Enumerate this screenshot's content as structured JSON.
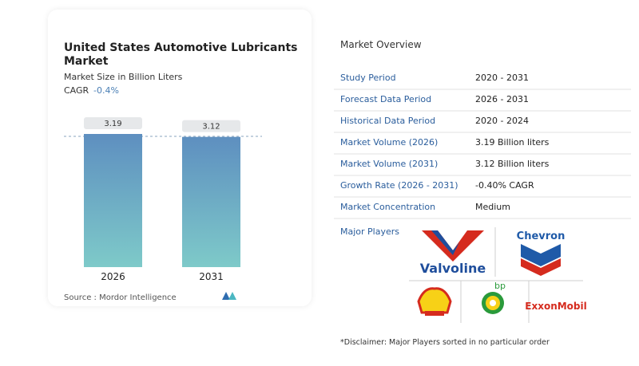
{
  "chart_data": {
    "type": "bar",
    "title": "United States Automotive Lubricants Market",
    "subtitle": "Market Size in Billion Liters",
    "cagr_label": "CAGR",
    "cagr": "-0.4%",
    "categories": [
      "2026",
      "2031"
    ],
    "values": [
      3.19,
      3.12
    ],
    "source": "Source :  Mordor Intelligence"
  },
  "overview": {
    "title": "Market Overview",
    "rows": [
      [
        "Study Period",
        "2020 - 2031"
      ],
      [
        "Forecast Data Period",
        "2026 - 2031"
      ],
      [
        "Historical Data Period",
        "2020 - 2024"
      ],
      [
        "Market Volume (2026)",
        "3.19 Billion liters"
      ],
      [
        "Market Volume (2031)",
        "3.12 Billion liters"
      ],
      [
        "Growth Rate (2026 - 2031)",
        "-0.40% CAGR"
      ],
      [
        "Market Concentration",
        "Medium"
      ]
    ],
    "players_label": "Major Players",
    "players": [
      "Valvoline",
      "Chevron",
      "bp",
      "ExxonMobil"
    ],
    "disclaimer": "*Disclaimer: Major Players sorted in no particular order"
  }
}
